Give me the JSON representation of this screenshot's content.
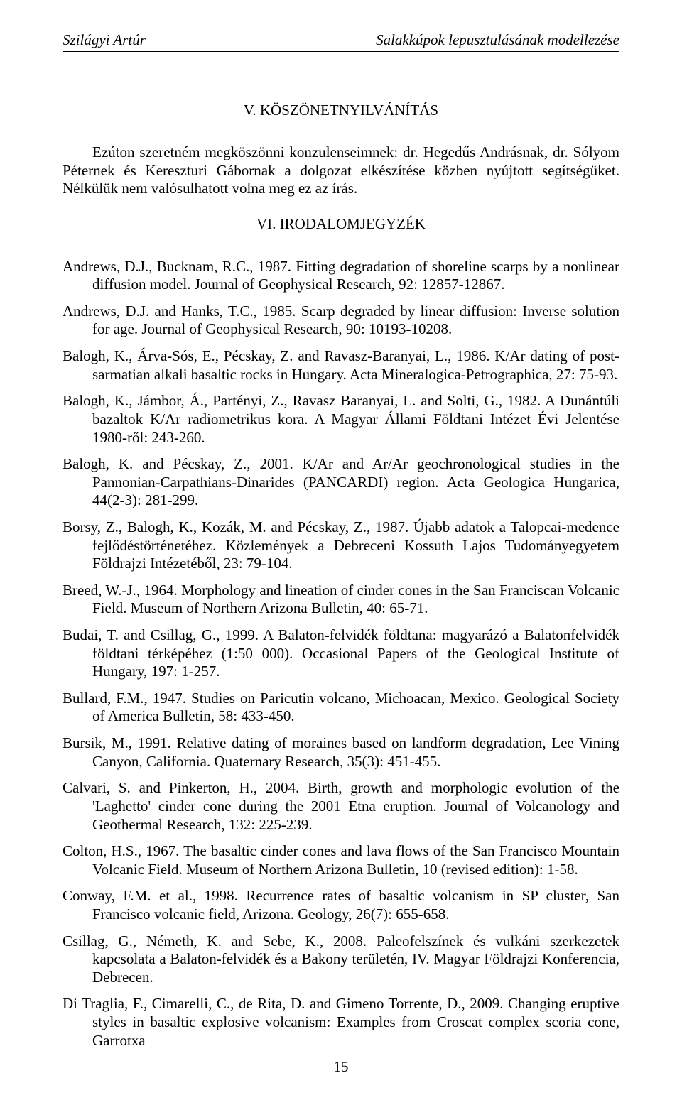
{
  "running_head": {
    "left": "Szilágyi Artúr",
    "right": "Salakkúpok lepusztulásának modellezése"
  },
  "sections": {
    "ack_title": "V. KÖSZÖNETNYILVÁNÍTÁS",
    "ack_body": "Ezúton szeretném megköszönni konzulenseimnek: dr. Hegedűs Andrásnak, dr. Sólyom Péternek és Kereszturi Gábornak a dolgozat elkészítése közben nyújtott segítségüket. Nélkülük nem valósulhatott volna meg ez az írás.",
    "bib_title": "VI. IRODALOMJEGYZÉK"
  },
  "refs": [
    "Andrews, D.J., Bucknam, R.C., 1987. Fitting degradation of shoreline scarps by a nonlinear diffusion model. Journal of Geophysical Research, 92: 12857-12867.",
    "Andrews, D.J. and Hanks, T.C., 1985. Scarp degraded by linear diffusion: Inverse solution for age. Journal of Geophysical Research, 90: 10193-10208.",
    "Balogh, K., Árva-Sós, E., Pécskay, Z. and Ravasz-Baranyai, L., 1986. K/Ar dating of post-sarmatian alkali basaltic rocks in Hungary. Acta Mineralogica-Petrographica, 27: 75-93.",
    "Balogh, K., Jámbor, Á., Partényi, Z., Ravasz Baranyai, L. and Solti, G., 1982. A Dunántúli bazaltok K/Ar radiometrikus kora. A Magyar Állami Földtani Intézet Évi Jelentése 1980-ről: 243-260.",
    "Balogh, K. and Pécskay, Z., 2001. K/Ar and Ar/Ar geochronological studies in the Pannonian-Carpathians-Dinarides (PANCARDI) region. Acta Geologica Hungarica, 44(2-3): 281-299.",
    "Borsy, Z., Balogh, K., Kozák, M. and Pécskay, Z., 1987. Újabb adatok a Talopcai-medence fejlődéstörténetéhez. Közlemények a Debreceni Kossuth Lajos Tudományegyetem Földrajzi Intézetéből, 23: 79-104.",
    "Breed, W.-J., 1964. Morphology and lineation of cinder cones in the San Franciscan Volcanic Field. Museum of Northern Arizona Bulletin, 40: 65-71.",
    "Budai, T. and Csillag, G., 1999. A Balaton-felvidék földtana: magyarázó a Balatonfelvidék földtani térképéhez (1:50 000). Occasional Papers of the Geological Institute of Hungary, 197: 1-257.",
    "Bullard, F.M., 1947. Studies on Paricutin volcano, Michoacan, Mexico. Geological Society of America Bulletin, 58: 433-450.",
    "Bursik, M., 1991. Relative dating of moraines based on landform degradation, Lee Vining Canyon, California. Quaternary Research, 35(3): 451-455.",
    "Calvari, S. and Pinkerton, H., 2004. Birth, growth and morphologic evolution of the 'Laghetto' cinder cone during the 2001 Etna eruption. Journal of Volcanology and Geothermal Research, 132: 225-239.",
    "Colton, H.S., 1967. The basaltic cinder cones and lava flows of the San Francisco Mountain Volcanic Field. Museum of Northern Arizona Bulletin, 10 (revised edition): 1-58.",
    "Conway, F.M. et al., 1998. Recurrence rates of basaltic volcanism in SP cluster, San Francisco volcanic field, Arizona. Geology, 26(7): 655-658.",
    "Csillag, G., Németh, K. and Sebe, K., 2008. Paleofelszínek és vulkáni szerkezetek kapcsolata a Balaton-felvidék és a Bakony területén, IV. Magyar Földrajzi Konferencia, Debrecen.",
    "Di Traglia, F., Cimarelli, C., de Rita, D. and Gimeno Torrente, D., 2009. Changing eruptive styles in basaltic explosive volcanism: Examples from Croscat complex scoria cone, Garrotxa"
  ],
  "page_number": "15"
}
